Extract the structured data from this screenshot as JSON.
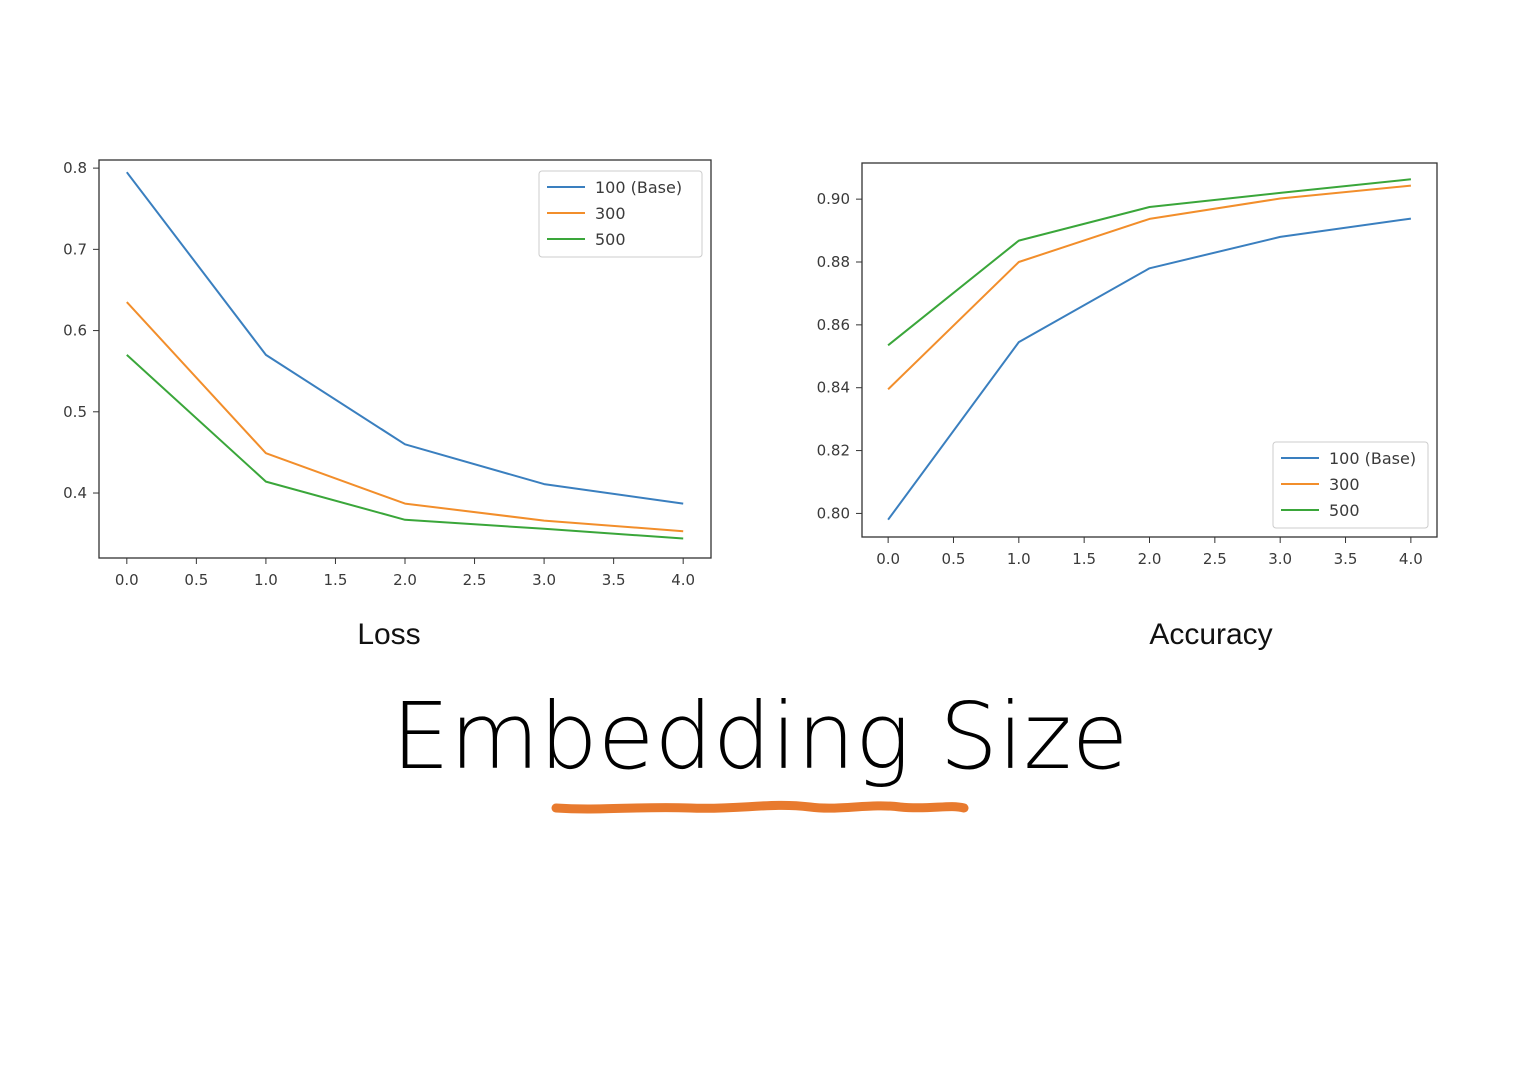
{
  "slide": {
    "title": "Embedding Size",
    "accent_color": "#e87a2e"
  },
  "chart_data": [
    {
      "type": "line",
      "caption": "Loss",
      "x": [
        0,
        1,
        2,
        3,
        4
      ],
      "series": [
        {
          "name": "100 (Base)",
          "color": "#3a7fbf",
          "values": [
            0.795,
            0.57,
            0.46,
            0.411,
            0.387
          ]
        },
        {
          "name": "300",
          "color": "#f28e2b",
          "values": [
            0.635,
            0.449,
            0.387,
            0.366,
            0.353
          ]
        },
        {
          "name": "500",
          "color": "#3aa63a",
          "values": [
            0.57,
            0.414,
            0.367,
            0.356,
            0.344
          ]
        }
      ],
      "xlim": [
        -0.2,
        4.2
      ],
      "ylim": [
        0.32,
        0.81
      ],
      "x_ticks": [
        0,
        0.5,
        1,
        1.5,
        2,
        2.5,
        3,
        3.5,
        4
      ],
      "x_tick_labels": [
        "0.0",
        "0.5",
        "1.0",
        "1.5",
        "2.0",
        "2.5",
        "3.0",
        "3.5",
        "4.0"
      ],
      "y_ticks": [
        0.4,
        0.5,
        0.6,
        0.7,
        0.8
      ],
      "y_tick_labels": [
        "0.4",
        "0.5",
        "0.6",
        "0.7",
        "0.8"
      ],
      "legend": "upper-right",
      "grid": false
    },
    {
      "type": "line",
      "caption": "Accuracy",
      "x": [
        0,
        1,
        2,
        3,
        4
      ],
      "series": [
        {
          "name": "100 (Base)",
          "color": "#3a7fbf",
          "values": [
            0.798,
            0.8545,
            0.878,
            0.888,
            0.8938
          ]
        },
        {
          "name": "300",
          "color": "#f28e2b",
          "values": [
            0.8395,
            0.88,
            0.8937,
            0.9002,
            0.9043
          ]
        },
        {
          "name": "500",
          "color": "#3aa63a",
          "values": [
            0.8535,
            0.8868,
            0.8975,
            0.902,
            0.9063
          ]
        }
      ],
      "xlim": [
        -0.2,
        4.2
      ],
      "ylim": [
        0.7925,
        0.9115
      ],
      "x_ticks": [
        0,
        0.5,
        1,
        1.5,
        2,
        2.5,
        3,
        3.5,
        4
      ],
      "x_tick_labels": [
        "0.0",
        "0.5",
        "1.0",
        "1.5",
        "2.0",
        "2.5",
        "3.0",
        "3.5",
        "4.0"
      ],
      "y_ticks": [
        0.8,
        0.82,
        0.84,
        0.86,
        0.88,
        0.9
      ],
      "y_tick_labels": [
        "0.80",
        "0.82",
        "0.84",
        "0.86",
        "0.88",
        "0.90"
      ],
      "legend": "lower-right",
      "grid": false
    }
  ]
}
